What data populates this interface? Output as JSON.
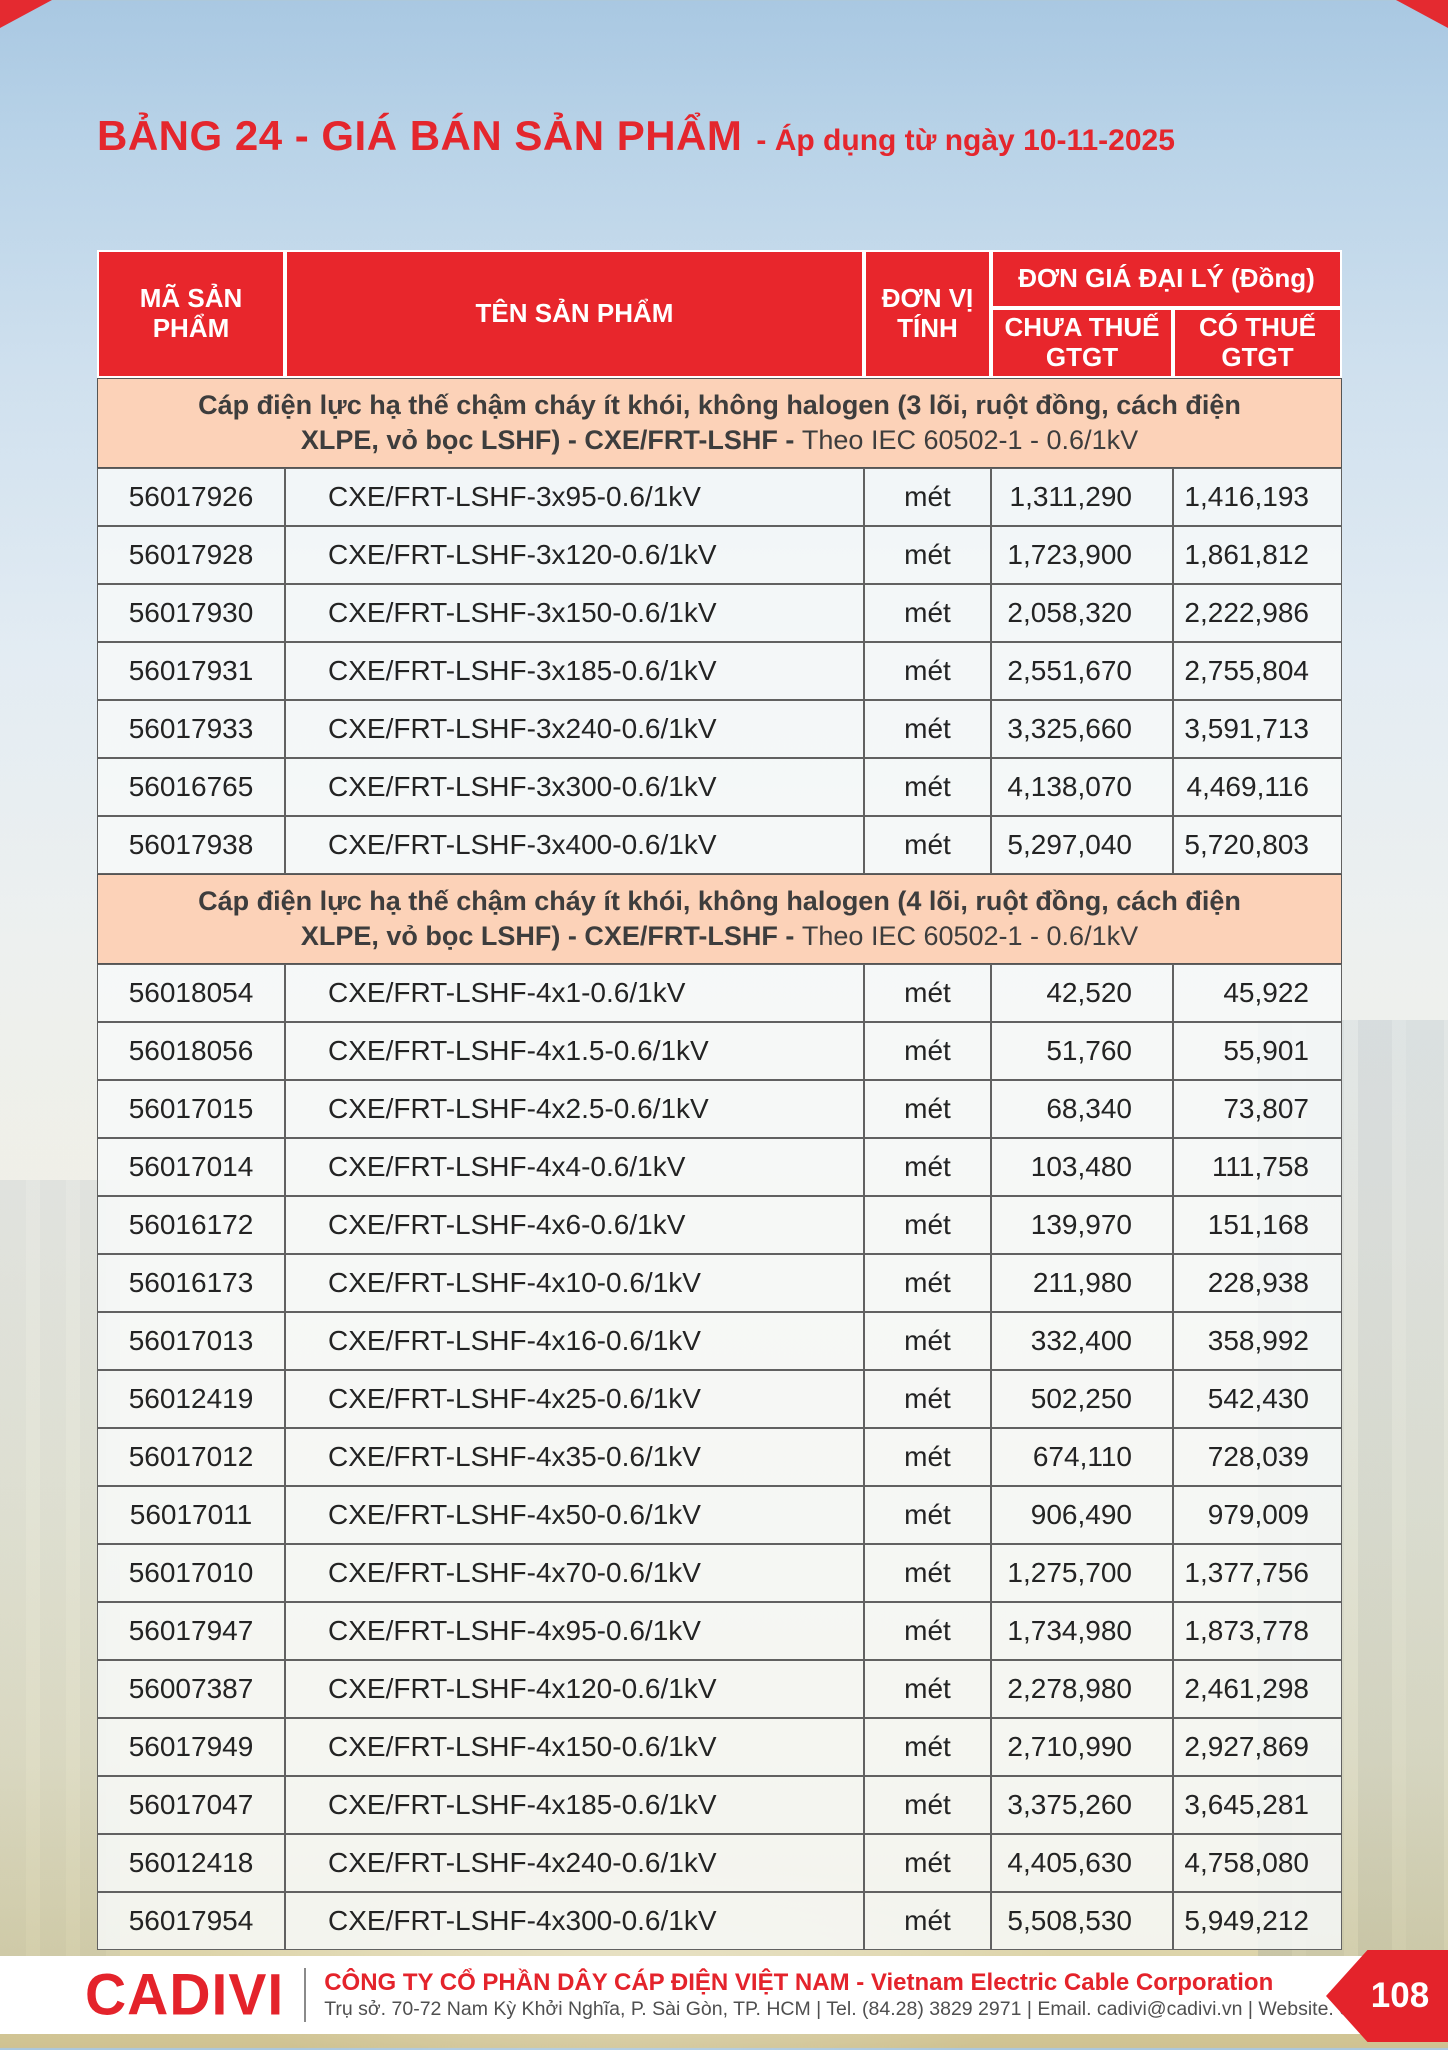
{
  "page": {
    "title": "BẢNG 24 - GIÁ BÁN SẢN PHẨM",
    "title_suffix": "- Áp dụng từ ngày 10-11-2025",
    "page_number": "108"
  },
  "colors": {
    "accent_red": "#e4232b",
    "header_red": "#e8262c",
    "section_bg": "#fcd2b8",
    "header_text": "#ffffff"
  },
  "table": {
    "header": {
      "code": "MÃ SẢN PHẨM",
      "name": "TÊN SẢN PHẨM",
      "unit": "ĐƠN VỊ TÍNH",
      "price_group": "ĐƠN GIÁ ĐẠI LÝ (Đồng)",
      "price_ex": "CHƯA THUẾ GTGT",
      "price_inc": "CÓ THUẾ GTGT"
    },
    "sections": [
      {
        "title_bold": "Cáp điện lực hạ thế chậm cháy ít khói, không halogen (3 lõi, ruột đồng, cách điện XLPE, vỏ bọc LSHF) - CXE/FRT-LSHF -",
        "title_normal": "Theo IEC 60502-1 - 0.6/1kV",
        "rows": [
          {
            "code": "56017926",
            "name": "CXE/FRT-LSHF-3x95-0.6/1kV",
            "unit": "mét",
            "price_ex_vat": "1,311,290",
            "price_inc_vat": "1,416,193"
          },
          {
            "code": "56017928",
            "name": "CXE/FRT-LSHF-3x120-0.6/1kV",
            "unit": "mét",
            "price_ex_vat": "1,723,900",
            "price_inc_vat": "1,861,812"
          },
          {
            "code": "56017930",
            "name": "CXE/FRT-LSHF-3x150-0.6/1kV",
            "unit": "mét",
            "price_ex_vat": "2,058,320",
            "price_inc_vat": "2,222,986"
          },
          {
            "code": "56017931",
            "name": "CXE/FRT-LSHF-3x185-0.6/1kV",
            "unit": "mét",
            "price_ex_vat": "2,551,670",
            "price_inc_vat": "2,755,804"
          },
          {
            "code": "56017933",
            "name": "CXE/FRT-LSHF-3x240-0.6/1kV",
            "unit": "mét",
            "price_ex_vat": "3,325,660",
            "price_inc_vat": "3,591,713"
          },
          {
            "code": "56016765",
            "name": "CXE/FRT-LSHF-3x300-0.6/1kV",
            "unit": "mét",
            "price_ex_vat": "4,138,070",
            "price_inc_vat": "4,469,116"
          },
          {
            "code": "56017938",
            "name": "CXE/FRT-LSHF-3x400-0.6/1kV",
            "unit": "mét",
            "price_ex_vat": "5,297,040",
            "price_inc_vat": "5,720,803"
          }
        ]
      },
      {
        "title_bold": "Cáp điện lực hạ thế chậm cháy ít khói, không halogen (4 lõi, ruột đồng, cách điện XLPE, vỏ bọc LSHF) - CXE/FRT-LSHF -",
        "title_normal": "Theo IEC 60502-1 - 0.6/1kV",
        "rows": [
          {
            "code": "56018054",
            "name": "CXE/FRT-LSHF-4x1-0.6/1kV",
            "unit": "mét",
            "price_ex_vat": "42,520",
            "price_inc_vat": "45,922"
          },
          {
            "code": "56018056",
            "name": "CXE/FRT-LSHF-4x1.5-0.6/1kV",
            "unit": "mét",
            "price_ex_vat": "51,760",
            "price_inc_vat": "55,901"
          },
          {
            "code": "56017015",
            "name": "CXE/FRT-LSHF-4x2.5-0.6/1kV",
            "unit": "mét",
            "price_ex_vat": "68,340",
            "price_inc_vat": "73,807"
          },
          {
            "code": "56017014",
            "name": "CXE/FRT-LSHF-4x4-0.6/1kV",
            "unit": "mét",
            "price_ex_vat": "103,480",
            "price_inc_vat": "111,758"
          },
          {
            "code": "56016172",
            "name": "CXE/FRT-LSHF-4x6-0.6/1kV",
            "unit": "mét",
            "price_ex_vat": "139,970",
            "price_inc_vat": "151,168"
          },
          {
            "code": "56016173",
            "name": "CXE/FRT-LSHF-4x10-0.6/1kV",
            "unit": "mét",
            "price_ex_vat": "211,980",
            "price_inc_vat": "228,938"
          },
          {
            "code": "56017013",
            "name": "CXE/FRT-LSHF-4x16-0.6/1kV",
            "unit": "mét",
            "price_ex_vat": "332,400",
            "price_inc_vat": "358,992"
          },
          {
            "code": "56012419",
            "name": "CXE/FRT-LSHF-4x25-0.6/1kV",
            "unit": "mét",
            "price_ex_vat": "502,250",
            "price_inc_vat": "542,430"
          },
          {
            "code": "56017012",
            "name": "CXE/FRT-LSHF-4x35-0.6/1kV",
            "unit": "mét",
            "price_ex_vat": "674,110",
            "price_inc_vat": "728,039"
          },
          {
            "code": "56017011",
            "name": "CXE/FRT-LSHF-4x50-0.6/1kV",
            "unit": "mét",
            "price_ex_vat": "906,490",
            "price_inc_vat": "979,009"
          },
          {
            "code": "56017010",
            "name": "CXE/FRT-LSHF-4x70-0.6/1kV",
            "unit": "mét",
            "price_ex_vat": "1,275,700",
            "price_inc_vat": "1,377,756"
          },
          {
            "code": "56017947",
            "name": "CXE/FRT-LSHF-4x95-0.6/1kV",
            "unit": "mét",
            "price_ex_vat": "1,734,980",
            "price_inc_vat": "1,873,778"
          },
          {
            "code": "56007387",
            "name": "CXE/FRT-LSHF-4x120-0.6/1kV",
            "unit": "mét",
            "price_ex_vat": "2,278,980",
            "price_inc_vat": "2,461,298"
          },
          {
            "code": "56017949",
            "name": "CXE/FRT-LSHF-4x150-0.6/1kV",
            "unit": "mét",
            "price_ex_vat": "2,710,990",
            "price_inc_vat": "2,927,869"
          },
          {
            "code": "56017047",
            "name": "CXE/FRT-LSHF-4x185-0.6/1kV",
            "unit": "mét",
            "price_ex_vat": "3,375,260",
            "price_inc_vat": "3,645,281"
          },
          {
            "code": "56012418",
            "name": "CXE/FRT-LSHF-4x240-0.6/1kV",
            "unit": "mét",
            "price_ex_vat": "4,405,630",
            "price_inc_vat": "4,758,080"
          },
          {
            "code": "56017954",
            "name": "CXE/FRT-LSHF-4x300-0.6/1kV",
            "unit": "mét",
            "price_ex_vat": "5,508,530",
            "price_inc_vat": "5,949,212"
          }
        ]
      }
    ]
  },
  "footer": {
    "logo": "CADIVI",
    "company": "CÔNG TY CỔ PHẦN DÂY CÁP ĐIỆN VIỆT NAM - Vietnam Electric Cable Corporation",
    "address": "Trụ sở. 70-72 Nam Kỳ Khởi Nghĩa, P. Sài Gòn, TP. HCM | Tel. (84.28) 3829 2971 | Email. cadivi@cadivi.vn | Website. cadivi.vn",
    "page_number": "108"
  }
}
